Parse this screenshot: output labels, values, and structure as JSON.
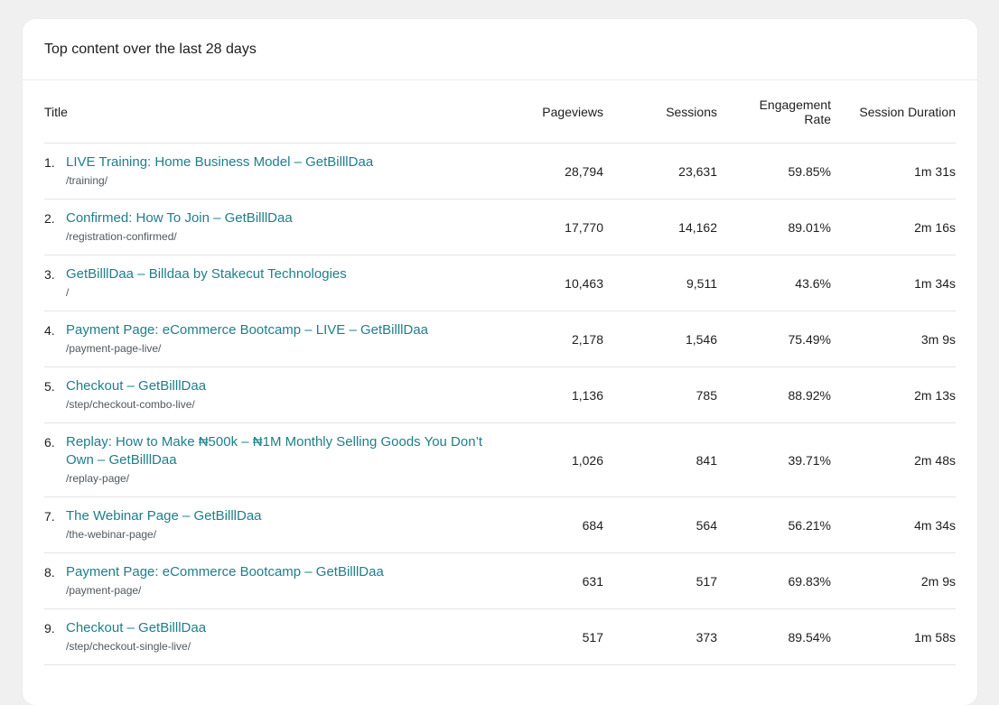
{
  "card": {
    "title": "Top content over the last 28 days"
  },
  "table": {
    "headers": {
      "title": "Title",
      "pageviews": "Pageviews",
      "sessions": "Sessions",
      "engagement_line1": "Engagement",
      "engagement_line2": "Rate",
      "duration": "Session Duration"
    },
    "rows": [
      {
        "num": "1.",
        "title": "LIVE Training: Home Business Model – GetBilllDaa",
        "path": "/training/",
        "pageviews": "28,794",
        "sessions": "23,631",
        "engagement": "59.85%",
        "duration": "1m 31s"
      },
      {
        "num": "2.",
        "title": "Confirmed: How To Join – GetBilllDaa",
        "path": "/registration-confirmed/",
        "pageviews": "17,770",
        "sessions": "14,162",
        "engagement": "89.01%",
        "duration": "2m 16s"
      },
      {
        "num": "3.",
        "title": "GetBilllDaa – Billdaa by Stakecut Technologies",
        "path": "/",
        "pageviews": "10,463",
        "sessions": "9,511",
        "engagement": "43.6%",
        "duration": "1m 34s"
      },
      {
        "num": "4.",
        "title": "Payment Page: eCommerce Bootcamp – LIVE – GetBilllDaa",
        "path": "/payment-page-live/",
        "pageviews": "2,178",
        "sessions": "1,546",
        "engagement": "75.49%",
        "duration": "3m 9s"
      },
      {
        "num": "5.",
        "title": "Checkout – GetBilllDaa",
        "path": "/step/checkout-combo-live/",
        "pageviews": "1,136",
        "sessions": "785",
        "engagement": "88.92%",
        "duration": "2m 13s"
      },
      {
        "num": "6.",
        "title": "Replay: How to Make ₦500k – ₦1M Monthly Selling Goods You Don’t Own – GetBilllDaa",
        "path": "/replay-page/",
        "pageviews": "1,026",
        "sessions": "841",
        "engagement": "39.71%",
        "duration": "2m 48s"
      },
      {
        "num": "7.",
        "title": "The Webinar Page – GetBilllDaa",
        "path": "/the-webinar-page/",
        "pageviews": "684",
        "sessions": "564",
        "engagement": "56.21%",
        "duration": "4m 34s"
      },
      {
        "num": "8.",
        "title": "Payment Page: eCommerce Bootcamp – GetBilllDaa",
        "path": "/payment-page/",
        "pageviews": "631",
        "sessions": "517",
        "engagement": "69.83%",
        "duration": "2m 9s"
      },
      {
        "num": "9.",
        "title": "Checkout – GetBilllDaa",
        "path": "/step/checkout-single-live/",
        "pageviews": "517",
        "sessions": "373",
        "engagement": "89.54%",
        "duration": "1m 58s"
      }
    ]
  },
  "colors": {
    "link": "#1d7f8a",
    "background": "#f0f0f1",
    "card": "#ffffff"
  }
}
